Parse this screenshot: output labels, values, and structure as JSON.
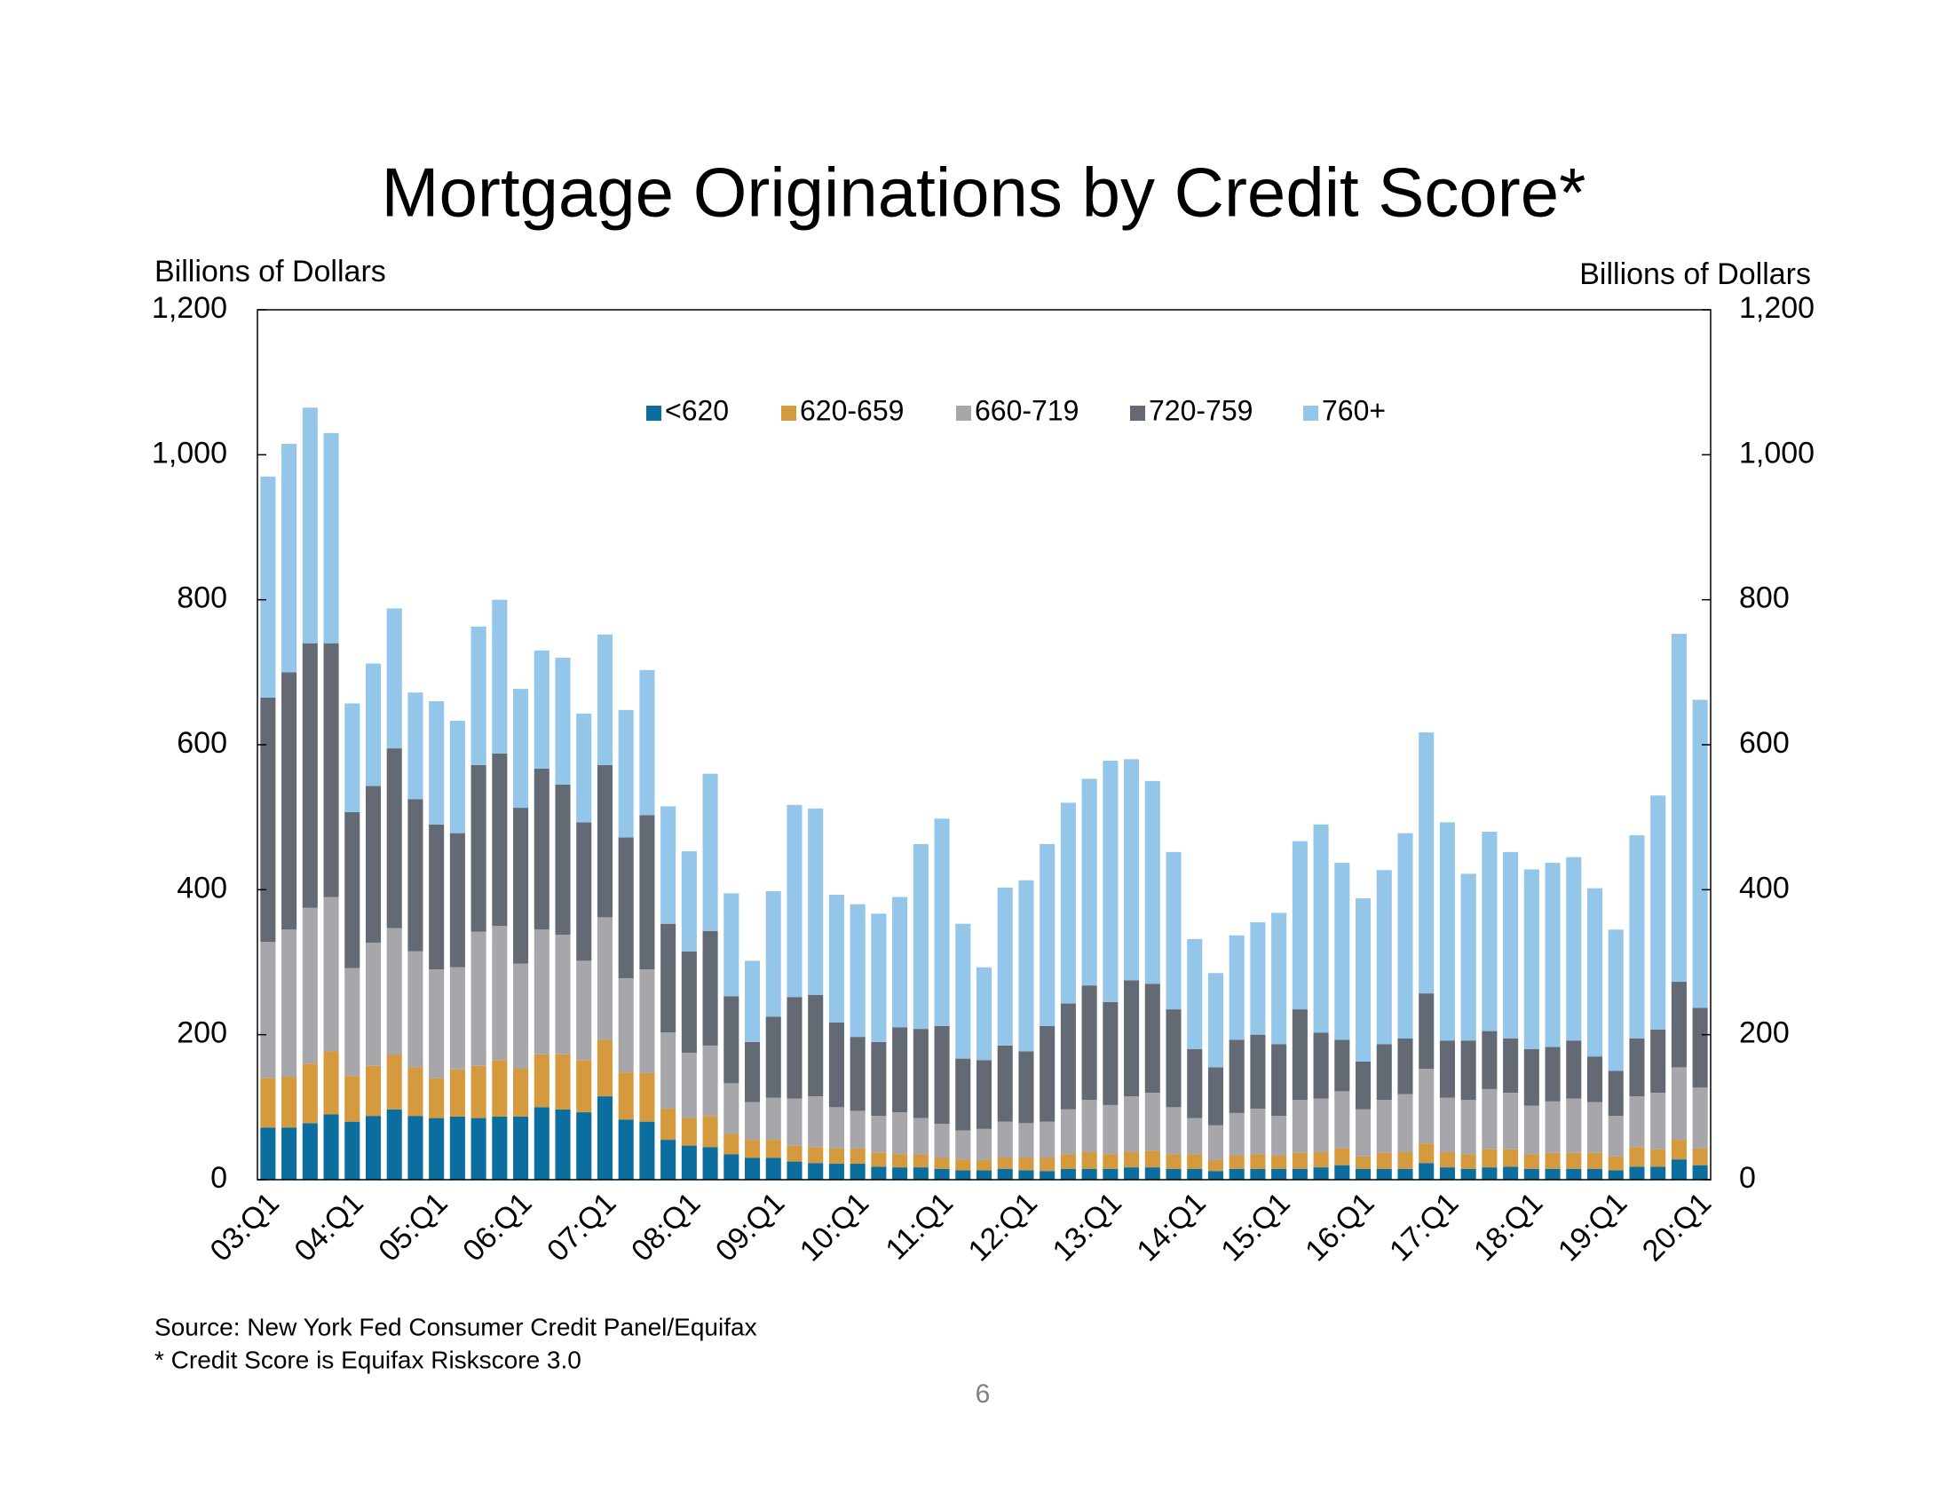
{
  "chart_data": {
    "type": "stacked-bar",
    "title": "Mortgage Originations by Credit Score*",
    "ylabel": "Billions of Dollars",
    "y2label": "Billions of Dollars",
    "source": "Source: New York Fed Consumer Credit Panel/Equifax",
    "note": "* Credit Score is Equifax Riskscore 3.0",
    "page_number": "6",
    "categories": [
      "03:Q1",
      null,
      null,
      null,
      "04:Q1",
      null,
      null,
      null,
      "05:Q1",
      null,
      null,
      null,
      "06:Q1",
      null,
      null,
      null,
      "07:Q1",
      null,
      null,
      null,
      "08:Q1",
      null,
      null,
      null,
      "09:Q1",
      null,
      null,
      null,
      "10:Q1",
      null,
      null,
      null,
      "11:Q1",
      null,
      null,
      null,
      "12:Q1",
      null,
      null,
      null,
      "13:Q1",
      null,
      null,
      null,
      "14:Q1",
      null,
      null,
      null,
      "15:Q1",
      null,
      null,
      null,
      "16:Q1",
      null,
      null,
      null,
      "17:Q1",
      null,
      null,
      null,
      "18:Q1",
      null,
      null,
      null,
      "19:Q1",
      null,
      null,
      null,
      "20:Q1"
    ],
    "series": [
      {
        "name": "<620",
        "color": "#0b6e9f",
        "values": [
          72,
          72,
          78,
          90,
          80,
          88,
          97,
          88,
          85,
          87,
          85,
          87,
          87,
          100,
          97,
          93,
          115,
          83,
          80,
          55,
          47,
          45,
          35,
          30,
          30,
          25,
          23,
          22,
          22,
          18,
          17,
          17,
          15,
          13,
          13,
          15,
          13,
          12,
          15,
          15,
          15,
          17,
          17,
          15,
          15,
          12,
          15,
          15,
          15,
          15,
          17,
          20,
          15,
          15,
          15,
          23,
          17,
          15,
          17,
          18,
          15,
          15,
          15,
          15,
          13,
          18,
          18,
          28,
          20
        ]
      },
      {
        "name": "620-659",
        "color": "#d49a3d",
        "values": [
          68,
          70,
          82,
          87,
          63,
          69,
          75,
          67,
          55,
          65,
          72,
          78,
          66,
          73,
          76,
          72,
          78,
          65,
          67,
          43,
          38,
          43,
          28,
          25,
          25,
          22,
          22,
          21,
          21,
          19,
          18,
          18,
          15,
          15,
          14,
          15,
          17,
          18,
          20,
          23,
          20,
          21,
          23,
          20,
          20,
          15,
          18,
          20,
          18,
          22,
          21,
          23,
          17,
          22,
          23,
          27,
          21,
          20,
          25,
          24,
          20,
          22,
          22,
          22,
          19,
          27,
          24,
          27,
          23
        ]
      },
      {
        "name": "660-719",
        "color": "#a6a6ab",
        "values": [
          188,
          203,
          215,
          213,
          149,
          170,
          175,
          160,
          150,
          141,
          185,
          185,
          145,
          172,
          165,
          137,
          169,
          130,
          143,
          105,
          90,
          97,
          70,
          52,
          58,
          65,
          70,
          57,
          52,
          51,
          58,
          50,
          47,
          40,
          43,
          50,
          48,
          50,
          62,
          72,
          68,
          77,
          80,
          65,
          50,
          48,
          59,
          63,
          55,
          73,
          74,
          79,
          65,
          73,
          80,
          103,
          75,
          75,
          83,
          78,
          67,
          71,
          75,
          70,
          56,
          70,
          78,
          100,
          84
        ]
      },
      {
        "name": "720-759",
        "color": "#636a73",
        "values": [
          337,
          355,
          365,
          350,
          215,
          216,
          248,
          210,
          200,
          185,
          230,
          238,
          215,
          222,
          207,
          191,
          210,
          194,
          213,
          150,
          140,
          158,
          120,
          83,
          112,
          140,
          140,
          117,
          102,
          102,
          117,
          123,
          135,
          99,
          95,
          105,
          99,
          132,
          146,
          158,
          142,
          160,
          150,
          135,
          95,
          80,
          101,
          102,
          99,
          125,
          91,
          71,
          66,
          77,
          77,
          104,
          79,
          82,
          80,
          75,
          78,
          75,
          80,
          63,
          62,
          80,
          87,
          118,
          110
        ]
      },
      {
        "name": "760+",
        "color": "#94c6ea",
        "values": [
          305,
          315,
          325,
          290,
          150,
          169,
          193,
          147,
          170,
          155,
          191,
          212,
          164,
          163,
          175,
          150,
          180,
          176,
          200,
          162,
          138,
          217,
          142,
          112,
          173,
          265,
          257,
          176,
          183,
          177,
          180,
          255,
          286,
          186,
          128,
          218,
          236,
          251,
          277,
          285,
          333,
          305,
          280,
          217,
          152,
          130,
          144,
          155,
          181,
          232,
          287,
          244,
          225,
          240,
          283,
          360,
          301,
          230,
          275,
          257,
          248,
          254,
          253,
          232,
          195,
          280,
          323,
          480,
          425
        ]
      }
    ],
    "ylim": [
      0,
      1200
    ],
    "yticks": [
      0,
      200,
      400,
      600,
      800,
      {
        "value": 1000,
        "label": "1,000"
      },
      {
        "value": 1200,
        "label": "1,200"
      }
    ]
  }
}
